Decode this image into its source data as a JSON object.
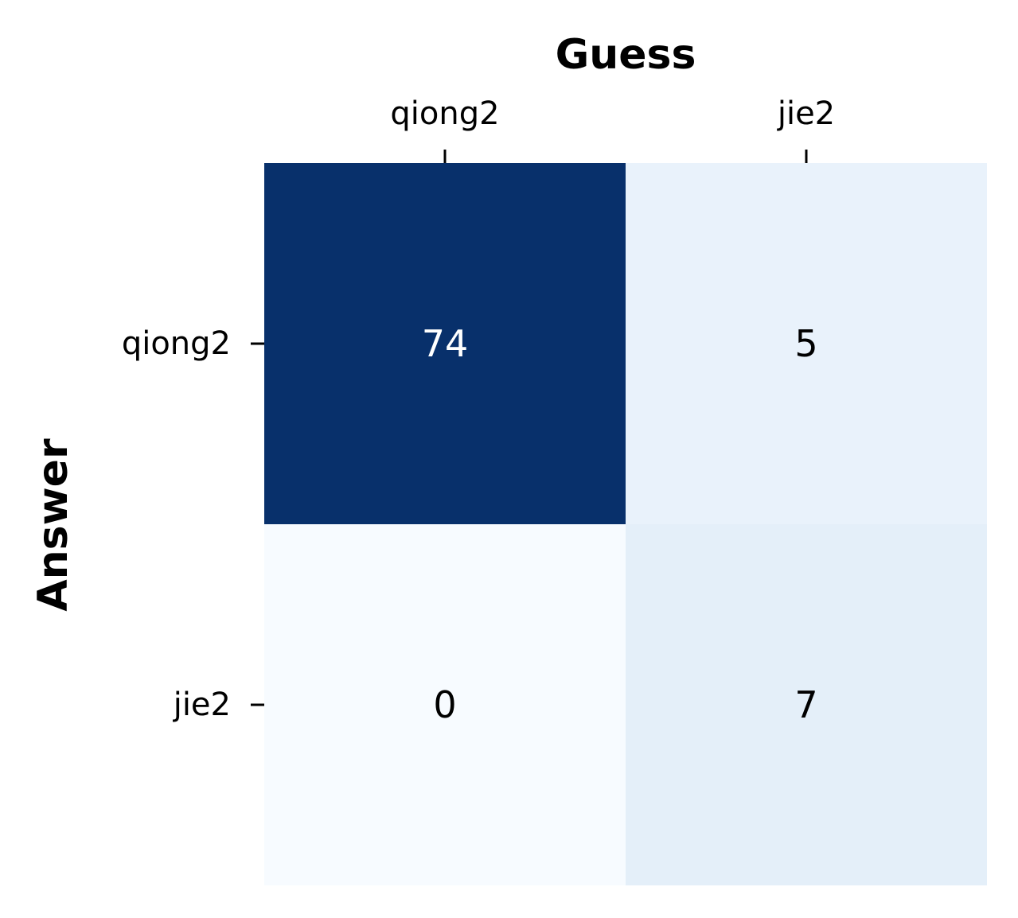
{
  "chart_data": {
    "type": "heatmap",
    "xlabel": "Guess",
    "ylabel": "Answer",
    "x_categories": [
      "qiong2",
      "jie2"
    ],
    "y_categories": [
      "qiong2",
      "jie2"
    ],
    "values": [
      [
        74,
        5
      ],
      [
        0,
        7
      ]
    ],
    "colormap": "Blues",
    "x_axis_position": "top",
    "colorbar": false,
    "grid": false
  }
}
